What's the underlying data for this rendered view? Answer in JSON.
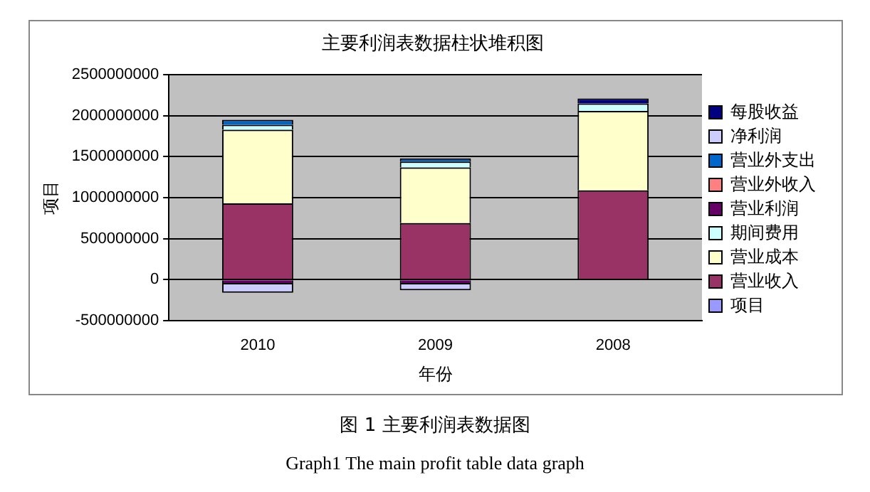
{
  "chart_data": {
    "type": "bar",
    "title": "主要利润表数据柱状堆积图",
    "xlabel": "年份",
    "ylabel": "项目",
    "categories": [
      "2010",
      "2009",
      "2008"
    ],
    "stacked": true,
    "legend": "right",
    "grid": "y",
    "ylim": [
      -500000000,
      2500000000
    ],
    "yticks": [
      -500000000,
      0,
      500000000,
      1000000000,
      1500000000,
      2000000000,
      2500000000
    ],
    "series": [
      {
        "name": "项目",
        "color": "#9999ff",
        "values": [
          0,
          0,
          0
        ]
      },
      {
        "name": "营业收入",
        "color": "#993366",
        "values": [
          930000000,
          690000000,
          1090000000
        ]
      },
      {
        "name": "营业成本",
        "color": "#ffffcc",
        "values": [
          900000000,
          680000000,
          970000000
        ]
      },
      {
        "name": "期间费用",
        "color": "#ccffff",
        "values": [
          60000000,
          70000000,
          90000000
        ]
      },
      {
        "name": "营业利润",
        "color": "#660066",
        "values": [
          -60000000,
          -60000000,
          0
        ]
      },
      {
        "name": "营业外收入",
        "color": "#ff8080",
        "values": [
          0,
          0,
          0
        ]
      },
      {
        "name": "营业外支出",
        "color": "#0066cc",
        "values": [
          60000000,
          40000000,
          0
        ]
      },
      {
        "name": "净利润",
        "color": "#ccccff",
        "values": [
          -100000000,
          -70000000,
          0
        ]
      },
      {
        "name": "每股收益",
        "color": "#000080",
        "values": [
          0,
          0,
          60000000
        ]
      }
    ],
    "annotations": [
      "图 1  主要利润表数据图",
      "Graph1    The main profit table data graph"
    ]
  }
}
